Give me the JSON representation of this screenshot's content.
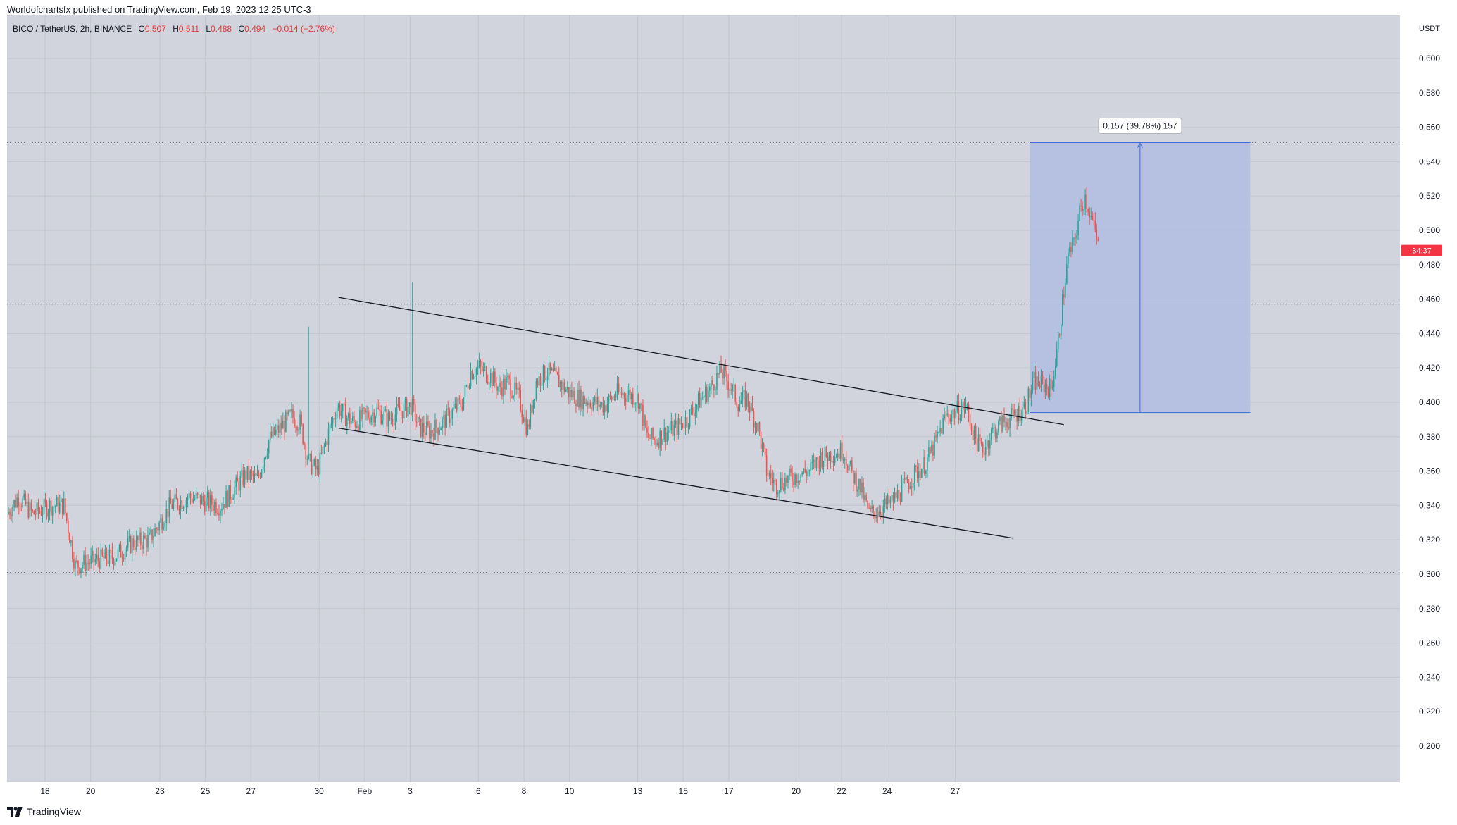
{
  "header": {
    "published": "Worldofchartsfx published on TradingView.com, Feb 19, 2023 12:25 UTC-3"
  },
  "footer": {
    "brand": "TradingView"
  },
  "legend": {
    "symbol": "BICO / TetherUS, 2h, BINANCE",
    "open_label": "O",
    "open": "0.507",
    "high_label": "H",
    "high": "0.511",
    "low_label": "L",
    "low": "0.488",
    "close_label": "C",
    "close": "0.494",
    "change": "−0.014 (−2.76%)"
  },
  "colors": {
    "background": "#d1d4dc",
    "grid": "#c3c6ce",
    "up": "#26a69a",
    "down": "#ef5350",
    "range_fill": "#b2bde3",
    "range_line": "#3e66d6",
    "trendline": "#131722",
    "price_label_bg": "#f23645"
  },
  "chart_data": {
    "type": "candlestick",
    "title": "BICO / TetherUS, 2h, BINANCE",
    "currency": "USDT",
    "ylim": [
      0.18,
      0.62
    ],
    "y_ticks": [
      "0.600",
      "0.580",
      "0.560",
      "0.540",
      "0.520",
      "0.500",
      "0.480",
      "0.460",
      "0.440",
      "0.420",
      "0.400",
      "0.380",
      "0.360",
      "0.340",
      "0.320",
      "0.300",
      "0.280",
      "0.260",
      "0.240",
      "0.220",
      "0.200"
    ],
    "x_ticks": [
      "18",
      "20",
      "23",
      "25",
      "27",
      "30",
      "Feb",
      "3",
      "6",
      "8",
      "10",
      "13",
      "15",
      "17",
      "20",
      "22",
      "24",
      "27"
    ],
    "current_price_label": "34:37",
    "current_price": 0.494,
    "price_path": [
      [
        0,
        0.335
      ],
      [
        8,
        0.345
      ],
      [
        18,
        0.335
      ],
      [
        30,
        0.34
      ],
      [
        40,
        0.34
      ],
      [
        48,
        0.305
      ],
      [
        62,
        0.308
      ],
      [
        75,
        0.31
      ],
      [
        88,
        0.318
      ],
      [
        100,
        0.32
      ],
      [
        115,
        0.34
      ],
      [
        128,
        0.345
      ],
      [
        140,
        0.342
      ],
      [
        150,
        0.34
      ],
      [
        160,
        0.35
      ],
      [
        168,
        0.358
      ],
      [
        176,
        0.355
      ],
      [
        184,
        0.378
      ],
      [
        192,
        0.385
      ],
      [
        200,
        0.392
      ],
      [
        206,
        0.388
      ],
      [
        212,
        0.365
      ],
      [
        218,
        0.36
      ],
      [
        226,
        0.382
      ],
      [
        232,
        0.398
      ],
      [
        238,
        0.392
      ],
      [
        244,
        0.388
      ],
      [
        252,
        0.392
      ],
      [
        260,
        0.395
      ],
      [
        268,
        0.39
      ],
      [
        276,
        0.395
      ],
      [
        284,
        0.398
      ],
      [
        290,
        0.385
      ],
      [
        298,
        0.383
      ],
      [
        306,
        0.388
      ],
      [
        314,
        0.395
      ],
      [
        320,
        0.4
      ],
      [
        326,
        0.418
      ],
      [
        332,
        0.42
      ],
      [
        340,
        0.415
      ],
      [
        346,
        0.408
      ],
      [
        352,
        0.412
      ],
      [
        360,
        0.402
      ],
      [
        366,
        0.384
      ],
      [
        372,
        0.412
      ],
      [
        380,
        0.418
      ],
      [
        388,
        0.412
      ],
      [
        396,
        0.405
      ],
      [
        404,
        0.402
      ],
      [
        412,
        0.4
      ],
      [
        420,
        0.398
      ],
      [
        428,
        0.405
      ],
      [
        436,
        0.405
      ],
      [
        444,
        0.402
      ],
      [
        450,
        0.38
      ],
      [
        456,
        0.378
      ],
      [
        462,
        0.382
      ],
      [
        470,
        0.385
      ],
      [
        478,
        0.39
      ],
      [
        486,
        0.4
      ],
      [
        494,
        0.408
      ],
      [
        502,
        0.418
      ],
      [
        508,
        0.41
      ],
      [
        514,
        0.4
      ],
      [
        520,
        0.402
      ],
      [
        528,
        0.385
      ],
      [
        534,
        0.36
      ],
      [
        540,
        0.352
      ],
      [
        548,
        0.355
      ],
      [
        556,
        0.358
      ],
      [
        564,
        0.36
      ],
      [
        572,
        0.368
      ],
      [
        580,
        0.37
      ],
      [
        588,
        0.372
      ],
      [
        594,
        0.358
      ],
      [
        600,
        0.35
      ],
      [
        606,
        0.335
      ],
      [
        614,
        0.338
      ],
      [
        622,
        0.342
      ],
      [
        630,
        0.35
      ],
      [
        638,
        0.358
      ],
      [
        646,
        0.365
      ],
      [
        652,
        0.375
      ],
      [
        660,
        0.392
      ],
      [
        668,
        0.395
      ],
      [
        674,
        0.398
      ],
      [
        680,
        0.38
      ],
      [
        686,
        0.372
      ],
      [
        692,
        0.382
      ],
      [
        700,
        0.388
      ],
      [
        708,
        0.392
      ],
      [
        716,
        0.398
      ],
      [
        722,
        0.412
      ],
      [
        728,
        0.41
      ],
      [
        734,
        0.408
      ],
      [
        738,
        0.428
      ],
      [
        742,
        0.458
      ],
      [
        746,
        0.485
      ],
      [
        750,
        0.492
      ],
      [
        754,
        0.51
      ],
      [
        758,
        0.52
      ],
      [
        762,
        0.508
      ],
      [
        766,
        0.495
      ]
    ],
    "spikes": [
      [
        211,
        0.444
      ],
      [
        284,
        0.47
      ]
    ],
    "trendlines": [
      {
        "x1": 232,
        "y1": 0.461,
        "x2": 742,
        "y2": 0.387
      },
      {
        "x1": 232,
        "y1": 0.385,
        "x2": 706,
        "y2": 0.321
      }
    ],
    "long_position": {
      "x1": 718,
      "x2": 873,
      "entry": 0.394,
      "target": 0.551,
      "label": "0.157 (39.78%) 157"
    },
    "dotted_levels": [
      0.551,
      0.457,
      0.301
    ]
  }
}
